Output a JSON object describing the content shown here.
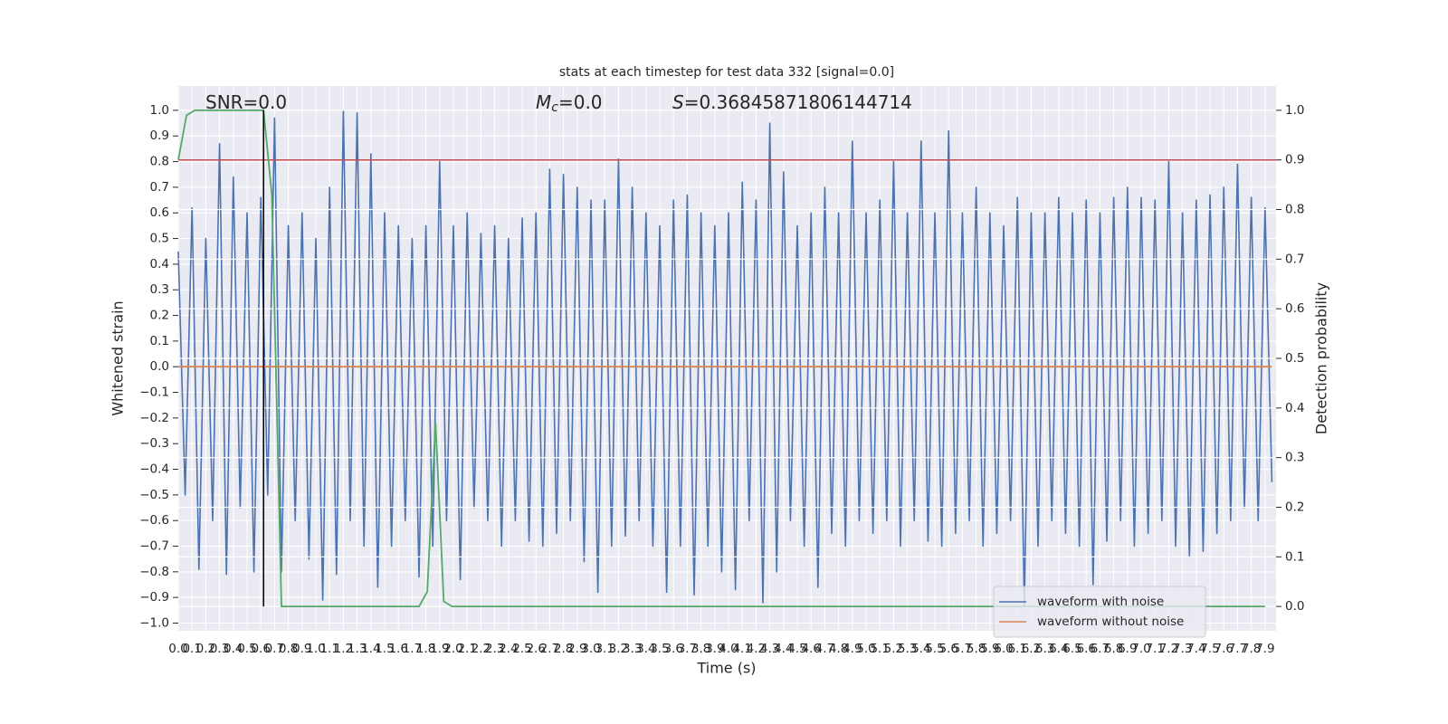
{
  "chart_data": {
    "type": "line",
    "title": "stats at each timestep for test data 332 [signal=0.0]",
    "xlabel": "Time (s)",
    "ylabel": "Whitened strain",
    "y2label": "Detection probability",
    "annotations": [
      {
        "text": "SNR=0.0"
      },
      {
        "symbol": "M",
        "subscript": "c",
        "text": "=0.0"
      },
      {
        "symbol": "S",
        "text": "=0.36845871806144714"
      }
    ],
    "xlim": [
      0,
      7.98
    ],
    "ylim": [
      -1.03,
      1.095
    ],
    "y2lim": [
      -0.049,
      1.049
    ],
    "grid": true,
    "legend": "lower right",
    "background": "#eaeaf2",
    "xticks": [
      {
        "value": 0,
        "label": "0.0"
      },
      0.1,
      0.2,
      0.3,
      0.4,
      0.5,
      0.6,
      0.7,
      0.8,
      0.9,
      {
        "value": 1,
        "label": "1.0"
      },
      1.1,
      1.2,
      1.3,
      1.4,
      1.5,
      1.6,
      1.7,
      1.8,
      1.9,
      {
        "value": 2,
        "label": "2.0"
      },
      2.1,
      2.2,
      2.3,
      2.4,
      2.5,
      2.6,
      2.7,
      2.8,
      2.9,
      {
        "value": 3,
        "label": "3.0"
      },
      3.1,
      3.2,
      3.3,
      3.4,
      3.5,
      3.6,
      3.7,
      3.8,
      3.9,
      {
        "value": 4,
        "label": "4.0"
      },
      4.1,
      4.2,
      4.3,
      4.4,
      4.5,
      4.6,
      4.7,
      4.8,
      4.9,
      {
        "value": 5,
        "label": "5.0"
      },
      5.1,
      5.2,
      5.3,
      5.4,
      5.5,
      5.6,
      5.7,
      5.8,
      5.9,
      {
        "value": 6,
        "label": "6.0"
      },
      6.1,
      6.2,
      6.3,
      6.4,
      6.5,
      6.6,
      6.7,
      6.8,
      6.9,
      {
        "value": 7,
        "label": "7.0"
      },
      7.1,
      7.2,
      7.3,
      7.4,
      7.5,
      7.6,
      7.7,
      7.8,
      7.9
    ],
    "yticks": [
      {
        "value": -1,
        "label": "−1.0"
      },
      {
        "value": -0.9,
        "label": "−0.9"
      },
      {
        "value": -0.8,
        "label": "−0.8"
      },
      {
        "value": -0.7,
        "label": "−0.7"
      },
      {
        "value": -0.6,
        "label": "−0.6"
      },
      {
        "value": -0.5,
        "label": "−0.5"
      },
      {
        "value": -0.4,
        "label": "−0.4"
      },
      {
        "value": -0.3,
        "label": "−0.3"
      },
      {
        "value": -0.2,
        "label": "−0.2"
      },
      {
        "value": -0.1,
        "label": "−0.1"
      },
      {
        "value": 0,
        "label": "0.0"
      },
      0.1,
      0.2,
      0.3,
      0.4,
      0.5,
      0.6,
      0.7,
      0.8,
      0.9,
      {
        "value": 1,
        "label": "1.0"
      }
    ],
    "y2ticks": [
      {
        "value": 0,
        "label": "0.0"
      },
      0.1,
      0.2,
      0.3,
      0.4,
      0.5,
      0.6,
      0.7,
      0.8,
      0.9,
      {
        "value": 1,
        "label": "1.0"
      }
    ],
    "series": [
      {
        "name": "waveform with noise",
        "color": "#4c72b0",
        "x": [
          0,
          0.05,
          0.1,
          0.15,
          0.2,
          0.25,
          0.3,
          0.35,
          0.4,
          0.45,
          0.5,
          0.55,
          0.6,
          0.65,
          0.7,
          0.75,
          0.8,
          0.85,
          0.9,
          0.95,
          1,
          1.05,
          1.1,
          1.15,
          1.2,
          1.25,
          1.3,
          1.35,
          1.4,
          1.45,
          1.5,
          1.55,
          1.6,
          1.65,
          1.7,
          1.75,
          1.8,
          1.85,
          1.9,
          1.95,
          2,
          2.05,
          2.1,
          2.15,
          2.2,
          2.25,
          2.3,
          2.35,
          2.4,
          2.45,
          2.5,
          2.55,
          2.6,
          2.65,
          2.7,
          2.75,
          2.8,
          2.85,
          2.9,
          2.95,
          3,
          3.05,
          3.1,
          3.15,
          3.2,
          3.25,
          3.3,
          3.35,
          3.4,
          3.45,
          3.5,
          3.55,
          3.6,
          3.65,
          3.7,
          3.75,
          3.8,
          3.85,
          3.9,
          3.95,
          4,
          4.05,
          4.1,
          4.15,
          4.2,
          4.25,
          4.3,
          4.35,
          4.4,
          4.45,
          4.5,
          4.55,
          4.6,
          4.65,
          4.7,
          4.75,
          4.8,
          4.85,
          4.9,
          4.95,
          5,
          5.05,
          5.1,
          5.15,
          5.2,
          5.25,
          5.3,
          5.35,
          5.4,
          5.45,
          5.5,
          5.55,
          5.6,
          5.65,
          5.7,
          5.75,
          5.8,
          5.85,
          5.9,
          5.95,
          6,
          6.05,
          6.1,
          6.15,
          6.2,
          6.25,
          6.3,
          6.35,
          6.4,
          6.45,
          6.5,
          6.55,
          6.6,
          6.65,
          6.7,
          6.75,
          6.8,
          6.85,
          6.9,
          6.95,
          7,
          7.05,
          7.1,
          7.15,
          7.2,
          7.25,
          7.3,
          7.35,
          7.4,
          7.45,
          7.5,
          7.55,
          7.6,
          7.65,
          7.7,
          7.75,
          7.8,
          7.85,
          7.9,
          7.95
        ],
        "values": [
          0.45,
          -0.5,
          0.62,
          -0.79,
          0.5,
          -0.6,
          0.87,
          -0.81,
          0.74,
          -0.55,
          0.6,
          -0.8,
          0.66,
          -0.5,
          0.97,
          -0.8,
          0.55,
          -0.6,
          0.6,
          -0.75,
          0.5,
          -0.91,
          0.7,
          -0.81,
          1.0,
          -0.6,
          0.99,
          -0.7,
          0.83,
          -0.86,
          0.6,
          -0.7,
          0.55,
          -0.6,
          0.5,
          -0.82,
          0.55,
          -0.7,
          0.8,
          -0.6,
          0.55,
          -0.83,
          0.6,
          -0.55,
          0.52,
          -0.6,
          0.55,
          -0.7,
          0.5,
          -0.6,
          0.58,
          -0.68,
          0.6,
          -0.7,
          0.77,
          -0.65,
          0.75,
          -0.6,
          0.7,
          -0.76,
          0.65,
          -0.88,
          0.65,
          -0.7,
          0.81,
          -0.66,
          0.7,
          -0.6,
          0.6,
          -0.7,
          0.55,
          -0.88,
          0.65,
          -0.7,
          0.67,
          -0.89,
          0.6,
          -0.7,
          0.55,
          -0.8,
          0.6,
          -0.87,
          0.72,
          -0.6,
          0.65,
          -0.92,
          0.95,
          -0.8,
          0.76,
          -0.6,
          0.55,
          -0.7,
          0.6,
          -0.86,
          0.7,
          -0.65,
          0.6,
          -0.7,
          0.88,
          -0.6,
          0.6,
          -0.65,
          0.65,
          -0.6,
          0.8,
          -0.7,
          0.6,
          -0.6,
          0.88,
          -0.68,
          0.6,
          -0.7,
          0.92,
          -0.65,
          0.6,
          -0.6,
          0.7,
          -0.7,
          0.6,
          -0.65,
          0.55,
          -0.6,
          0.66,
          -0.93,
          0.6,
          -0.7,
          0.6,
          -0.6,
          0.66,
          -0.65,
          0.6,
          -0.7,
          0.65,
          -0.85,
          0.6,
          -0.68,
          0.66,
          -0.6,
          0.7,
          -0.7,
          0.66,
          -0.65,
          0.65,
          -0.6,
          0.8,
          -0.7,
          0.6,
          -0.74,
          0.65,
          -0.72,
          0.67,
          -0.65,
          0.7,
          -0.6,
          0.79,
          -0.55,
          0.66,
          -0.6,
          0.62,
          -0.45
        ]
      },
      {
        "name": "waveform without noise",
        "color": "#dd8452",
        "x": [
          0,
          7.95
        ],
        "values": [
          0,
          0
        ]
      },
      {
        "color": "#55a868",
        "axis": "y2",
        "x": [
          0,
          0.06,
          0.12,
          0.62,
          0.68,
          0.75,
          1.75,
          1.81,
          1.87,
          1.93,
          1.99,
          7.9
        ],
        "values": [
          0.9,
          0.99,
          1.0,
          1.0,
          0.83,
          0,
          0,
          0.03,
          0.37,
          0.01,
          0,
          0
        ]
      }
    ],
    "hlines": [
      {
        "y": 0.9,
        "axis": "y2",
        "color": "#c44e52"
      }
    ],
    "vlines": [
      {
        "x": 0.62,
        "axis": "y2",
        "ymin": 0,
        "ymax": 1,
        "color": "#000000"
      }
    ]
  }
}
